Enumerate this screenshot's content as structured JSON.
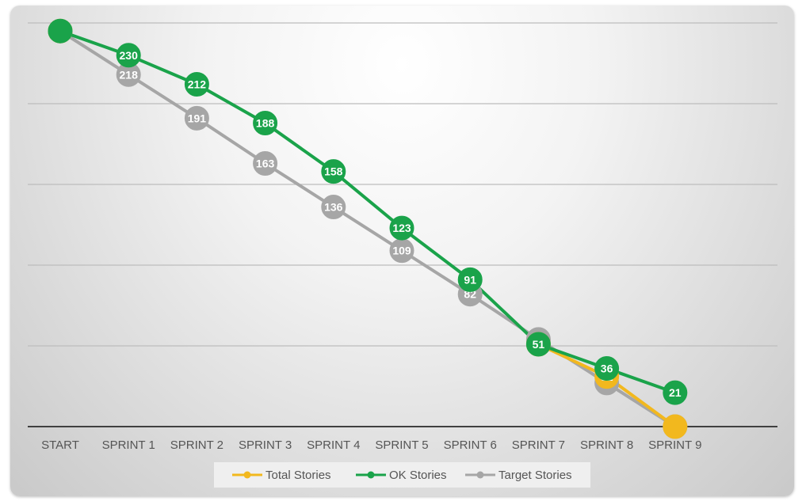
{
  "chart_data": {
    "type": "line",
    "categories": [
      "START",
      "SPRINT 1",
      "SPRINT 2",
      "SPRINT 3",
      "SPRINT 4",
      "SPRINT 5",
      "SPRINT 6",
      "SPRINT 7",
      "SPRINT 8",
      "SPRINT 9"
    ],
    "ylim": [
      0,
      250
    ],
    "grid": true,
    "legend": "bottom",
    "series": [
      {
        "name": "Total Stories",
        "color": "#f2b81e",
        "values": [
          245,
          null,
          null,
          null,
          null,
          null,
          null,
          51,
          31,
          0
        ],
        "labels": [
          false,
          false,
          false,
          false,
          false,
          false,
          false,
          false,
          true,
          false
        ]
      },
      {
        "name": "OK Stories",
        "color": "#1aa34a",
        "values": [
          245,
          230,
          212,
          188,
          158,
          123,
          91,
          51,
          36,
          21
        ],
        "labels": [
          false,
          true,
          true,
          true,
          true,
          true,
          true,
          true,
          true,
          true
        ]
      },
      {
        "name": "Target Stories",
        "color": "#a6a6a6",
        "values": [
          245,
          218,
          191,
          163,
          136,
          109,
          82,
          54,
          27,
          0
        ],
        "labels": [
          true,
          true,
          true,
          true,
          true,
          true,
          true,
          true,
          true,
          true
        ]
      }
    ]
  }
}
